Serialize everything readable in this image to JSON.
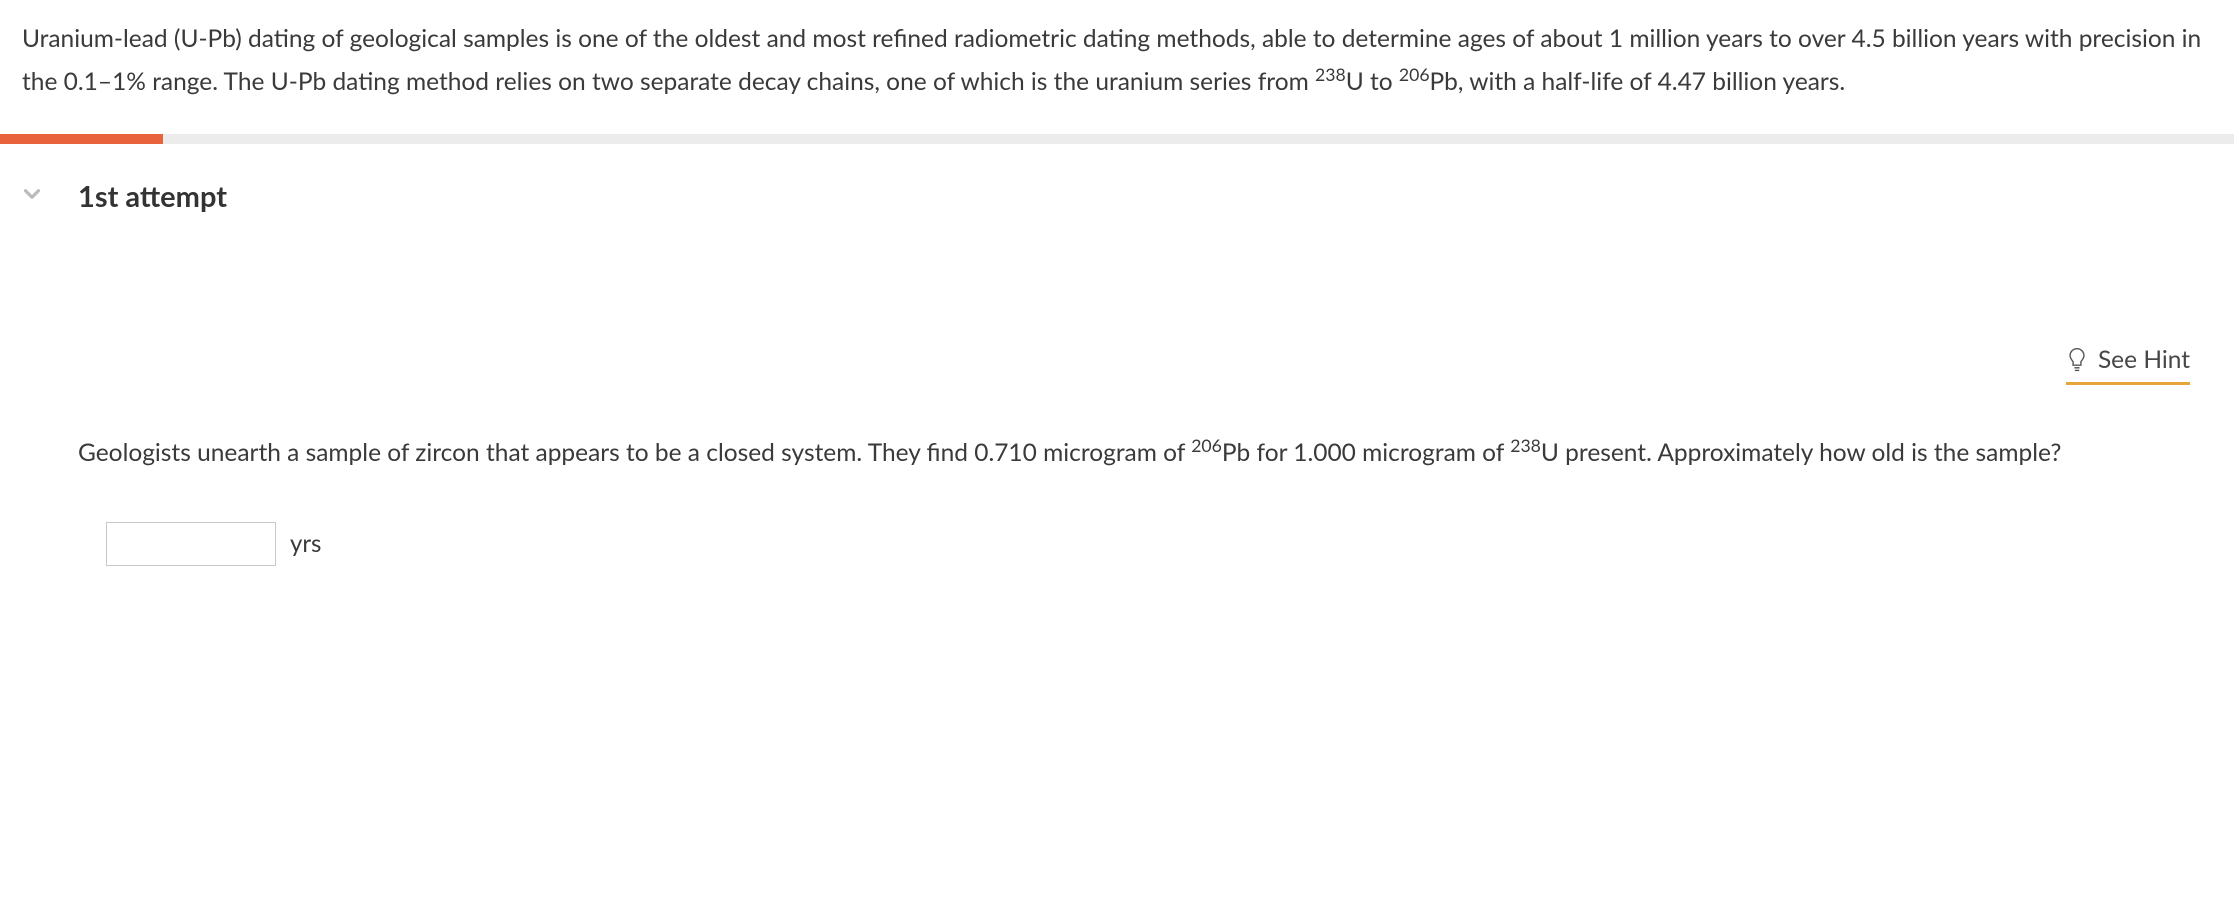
{
  "intro": {
    "part1": "Uranium-lead (U-Pb) dating of geological samples is one of the oldest and most refined radiometric dating methods, able to determine ages of about 1 million years to over 4.5 billion years with precision in the 0.1–1% range. The U-Pb dating method relies on two separate decay chains, one of which is the uranium series from ",
    "sup1": "238",
    "el1": "U to ",
    "sup2": "206",
    "el2": "Pb, with a half-life of 4.47 billion years."
  },
  "progress": {
    "fill_percent": 7.3,
    "bar_bg": "#ececec",
    "fill_color": "#e8623c"
  },
  "attempt": {
    "title": "1st attempt"
  },
  "hint": {
    "label": "See Hint",
    "underline_color": "#e6a43a"
  },
  "question": {
    "part1": "Geologists unearth a sample of zircon that appears to be a closed system. They find 0.710 microgram of ",
    "sup1": "206",
    "el1": "Pb for 1.000 microgram of ",
    "sup2": "238",
    "el2": "U present. Approximately how old is the sample?"
  },
  "answer": {
    "value": "",
    "unit": "yrs"
  }
}
